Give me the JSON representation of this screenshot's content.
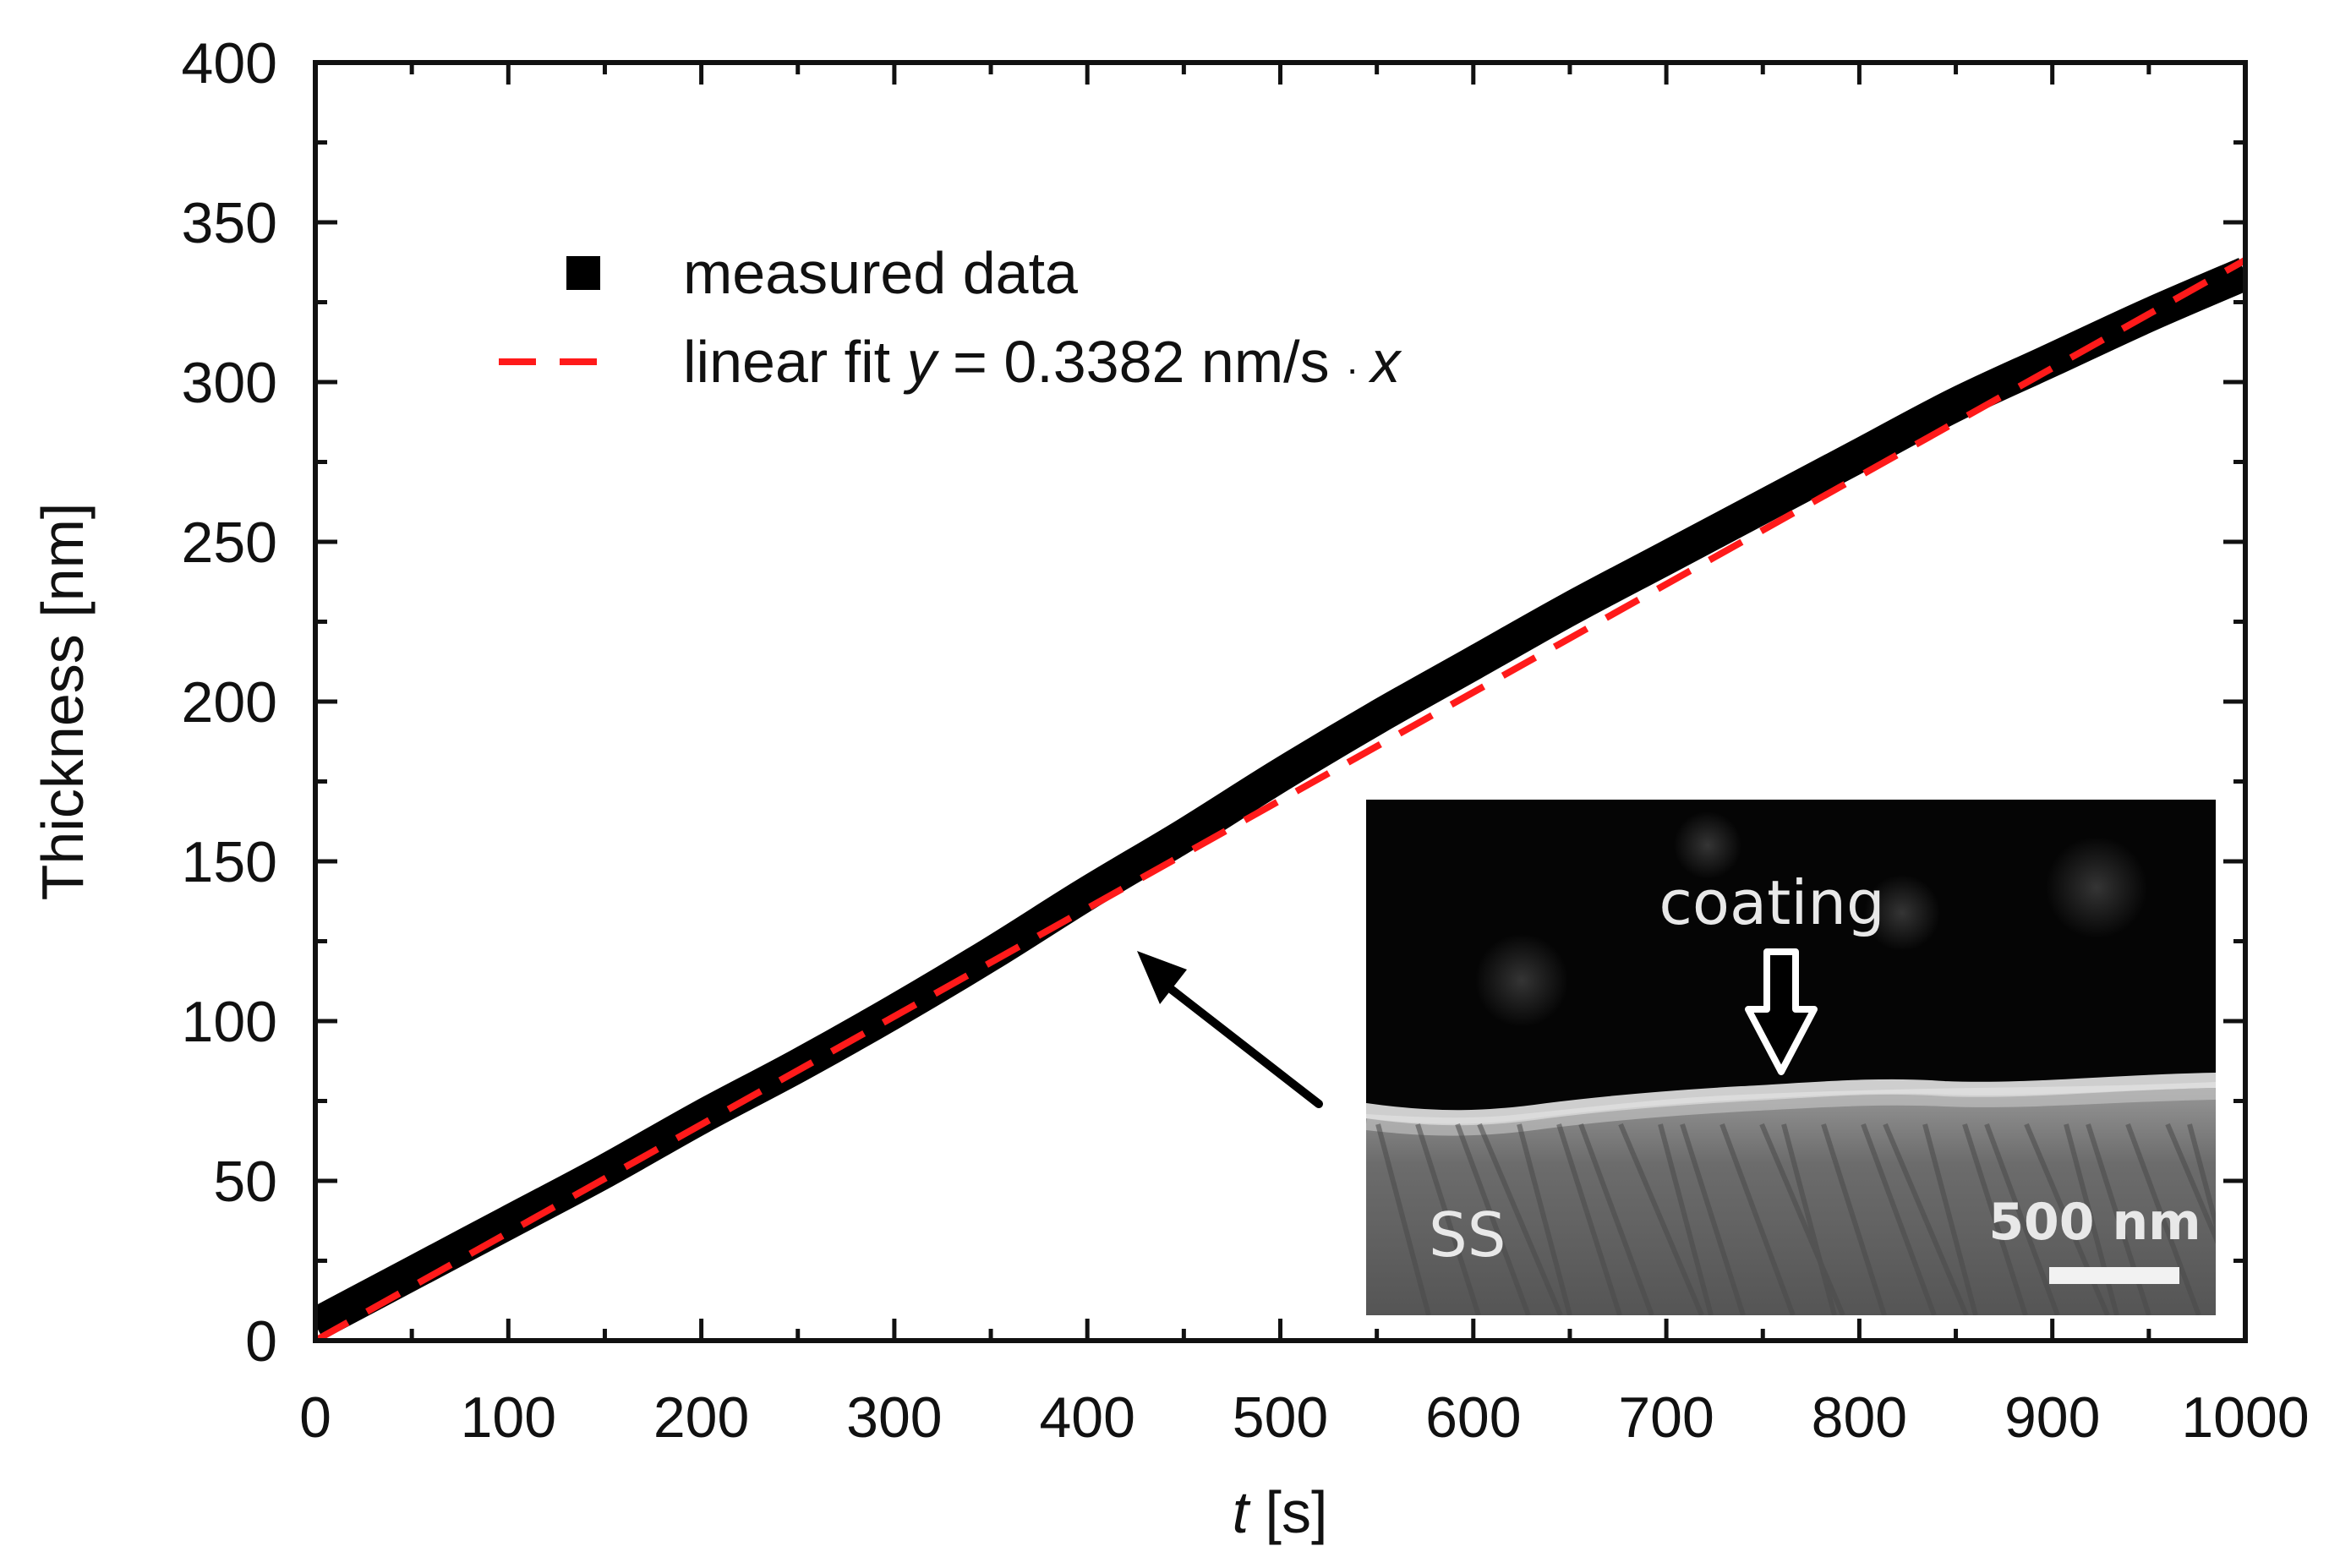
{
  "chart_data": {
    "type": "line",
    "title": "",
    "xlabel": {
      "var": "t",
      "unit": " [s]"
    },
    "ylabel": "Thickness [nm]",
    "xlim": [
      0,
      1000
    ],
    "ylim": [
      0,
      400
    ],
    "xticks": [
      0,
      100,
      200,
      300,
      400,
      500,
      600,
      700,
      800,
      900,
      1000
    ],
    "yticks": [
      0,
      50,
      100,
      150,
      200,
      250,
      300,
      350,
      400
    ],
    "x_minor_step": 50,
    "y_minor_step": 25,
    "series": [
      {
        "name": "measured data",
        "style": "thick-black-band",
        "color": "#000000",
        "x": [
          0,
          50,
          100,
          150,
          200,
          250,
          300,
          350,
          400,
          450,
          500,
          550,
          600,
          650,
          700,
          750,
          800,
          850,
          900,
          950,
          1000
        ],
        "y": [
          5,
          21,
          37,
          53,
          70,
          86,
          103,
          121,
          140,
          158,
          177,
          195,
          212,
          229,
          245,
          261,
          277,
          293,
          307,
          321,
          334
        ]
      },
      {
        "name": "linear fit",
        "style": "dashed",
        "color": "#ff1a1a",
        "slope": 0.3382,
        "x": [
          0,
          1000
        ],
        "y": [
          0,
          338.2
        ]
      }
    ],
    "legend": {
      "position": "top-left",
      "entries": [
        {
          "marker": "square",
          "color": "#000000",
          "label": "measured data"
        },
        {
          "marker": "dash",
          "color": "#ff1a1a",
          "label_prefix": "linear fit ",
          "label_var": "y",
          "label_eq": " = 0.3382 nm/s ",
          "label_dot": "·",
          "label_x": "x"
        }
      ]
    },
    "inset": {
      "type": "micrograph",
      "label_coating": "coating",
      "label_substrate": "SS",
      "scale_bar": "500 nm",
      "arrow_to_curve_at_x": 420
    }
  }
}
